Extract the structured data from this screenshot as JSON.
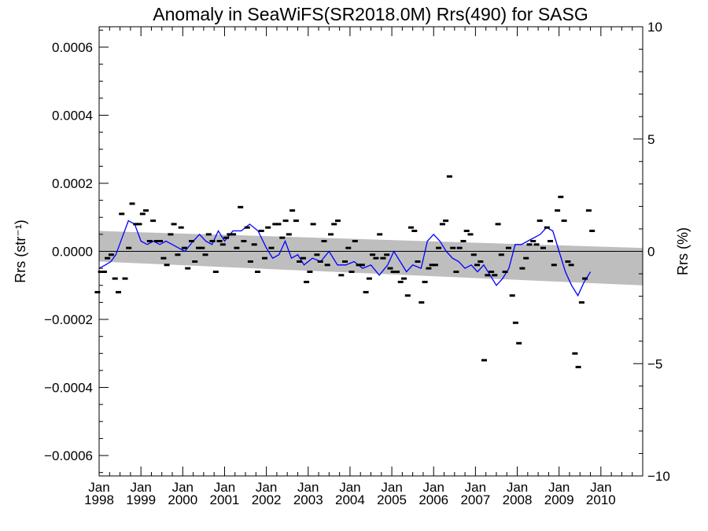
{
  "chart_data": {
    "type": "scatter",
    "title": "Anomaly in SeaWiFS(SR2018.0M) Rrs(490) for SASG",
    "ylabel_left": "Rrs (str⁻¹)",
    "ylabel_right": "Rrs (%)",
    "xlabel": "",
    "xlim": [
      1998.0,
      2011.0
    ],
    "ylim_left": [
      -0.00066,
      0.00066
    ],
    "ylim_right": [
      -10,
      10
    ],
    "grid": false,
    "legend": "none",
    "x_ticks": [
      {
        "value": 1998.0,
        "month": "Jan",
        "year": "1998"
      },
      {
        "value": 1999.0,
        "month": "Jan",
        "year": "1999"
      },
      {
        "value": 2000.0,
        "month": "Jan",
        "year": "2000"
      },
      {
        "value": 2001.0,
        "month": "Jan",
        "year": "2001"
      },
      {
        "value": 2002.0,
        "month": "Jan",
        "year": "2002"
      },
      {
        "value": 2003.0,
        "month": "Jan",
        "year": "2003"
      },
      {
        "value": 2004.0,
        "month": "Jan",
        "year": "2004"
      },
      {
        "value": 2005.0,
        "month": "Jan",
        "year": "2005"
      },
      {
        "value": 2006.0,
        "month": "Jan",
        "year": "2006"
      },
      {
        "value": 2007.0,
        "month": "Jan",
        "year": "2007"
      },
      {
        "value": 2008.0,
        "month": "Jan",
        "year": "2008"
      },
      {
        "value": 2009.0,
        "month": "Jan",
        "year": "2009"
      },
      {
        "value": 2010.0,
        "month": "Jan",
        "year": "2010"
      }
    ],
    "y_ticks_left": [
      {
        "value": 0.0006,
        "label": "0.0006"
      },
      {
        "value": 0.0004,
        "label": "0.0004"
      },
      {
        "value": 0.0002,
        "label": "0.0002"
      },
      {
        "value": 0.0,
        "label": "0.0000"
      },
      {
        "value": -0.0002,
        "label": "−0.0002"
      },
      {
        "value": -0.0004,
        "label": "−0.0004"
      },
      {
        "value": -0.0006,
        "label": "−0.0006"
      }
    ],
    "y_ticks_right": [
      {
        "value": 10,
        "label": "10"
      },
      {
        "value": 5,
        "label": "5"
      },
      {
        "value": 0,
        "label": "0"
      },
      {
        "value": -5,
        "label": "−5"
      },
      {
        "value": -10,
        "label": "−10"
      }
    ],
    "colors": {
      "points": "#000000",
      "running_mean": "#0000ff",
      "confidence_band": "#bebebe",
      "zero_line": "#000000"
    },
    "monthly_anomalies": [
      [
        1997.96,
        -0.00012
      ],
      [
        1998.04,
        -6e-05
      ],
      [
        1998.12,
        -6e-05
      ],
      [
        1998.2,
        -2e-05
      ],
      [
        1998.29,
        -1e-05
      ],
      [
        1998.38,
        -8e-05
      ],
      [
        1998.46,
        -0.00012
      ],
      [
        1998.54,
        0.00011
      ],
      [
        1998.62,
        -8e-05
      ],
      [
        1998.71,
        1e-05
      ],
      [
        1998.79,
        0.00014
      ],
      [
        1998.88,
        8e-05
      ],
      [
        1998.96,
        8e-05
      ],
      [
        1999.04,
        0.00011
      ],
      [
        1999.12,
        0.00012
      ],
      [
        1999.21,
        3e-05
      ],
      [
        1999.29,
        9e-05
      ],
      [
        1999.38,
        3e-05
      ],
      [
        1999.46,
        3e-05
      ],
      [
        1999.54,
        -2e-05
      ],
      [
        1999.62,
        -4e-05
      ],
      [
        1999.71,
        5e-05
      ],
      [
        1999.79,
        8e-05
      ],
      [
        1999.88,
        -1e-05
      ],
      [
        1999.96,
        7e-05
      ],
      [
        2000.04,
        1e-05
      ],
      [
        2000.12,
        -5e-05
      ],
      [
        2000.21,
        3e-05
      ],
      [
        2000.29,
        -3e-05
      ],
      [
        2000.38,
        1e-05
      ],
      [
        2000.46,
        1e-05
      ],
      [
        2000.54,
        -1e-05
      ],
      [
        2000.62,
        5e-05
      ],
      [
        2000.71,
        3e-05
      ],
      [
        2000.79,
        -6e-05
      ],
      [
        2000.88,
        3e-05
      ],
      [
        2000.96,
        2e-05
      ],
      [
        2001.04,
        4e-05
      ],
      [
        2001.12,
        5e-05
      ],
      [
        2001.21,
        5e-05
      ],
      [
        2001.29,
        1e-05
      ],
      [
        2001.38,
        0.00013
      ],
      [
        2001.46,
        3e-05
      ],
      [
        2001.54,
        7e-05
      ],
      [
        2001.62,
        -3e-05
      ],
      [
        2001.71,
        2e-05
      ],
      [
        2001.79,
        -6e-05
      ],
      [
        2001.88,
        6e-05
      ],
      [
        2001.96,
        -2e-05
      ],
      [
        2002.04,
        7e-05
      ],
      [
        2002.12,
        1e-05
      ],
      [
        2002.21,
        8e-05
      ],
      [
        2002.29,
        8e-05
      ],
      [
        2002.38,
        4e-05
      ],
      [
        2002.46,
        9e-05
      ],
      [
        2002.54,
        5e-05
      ],
      [
        2002.62,
        0.00012
      ],
      [
        2002.71,
        9e-05
      ],
      [
        2002.79,
        -3e-05
      ],
      [
        2002.88,
        -2e-05
      ],
      [
        2002.96,
        -9e-05
      ],
      [
        2003.04,
        -6e-05
      ],
      [
        2003.12,
        8e-05
      ],
      [
        2003.21,
        -1e-05
      ],
      [
        2003.29,
        -3e-05
      ],
      [
        2003.38,
        3e-05
      ],
      [
        2003.46,
        -4e-05
      ],
      [
        2003.54,
        5e-05
      ],
      [
        2003.62,
        8e-05
      ],
      [
        2003.71,
        9e-05
      ],
      [
        2003.79,
        -7e-05
      ],
      [
        2003.88,
        -3e-05
      ],
      [
        2003.96,
        1e-05
      ],
      [
        2004.04,
        -6e-05
      ],
      [
        2004.12,
        3e-05
      ],
      [
        2004.21,
        -4e-05
      ],
      [
        2004.29,
        -4e-05
      ],
      [
        2004.38,
        -0.00012
      ],
      [
        2004.46,
        -8e-05
      ],
      [
        2004.54,
        -1e-05
      ],
      [
        2004.62,
        -2e-05
      ],
      [
        2004.71,
        5e-05
      ],
      [
        2004.79,
        -2e-05
      ],
      [
        2004.88,
        -1e-05
      ],
      [
        2004.96,
        -5e-05
      ],
      [
        2005.04,
        -6e-05
      ],
      [
        2005.12,
        -6e-05
      ],
      [
        2005.21,
        -9e-05
      ],
      [
        2005.29,
        -8e-05
      ],
      [
        2005.38,
        -0.00013
      ],
      [
        2005.46,
        7e-05
      ],
      [
        2005.54,
        6e-05
      ],
      [
        2005.62,
        -3e-05
      ],
      [
        2005.71,
        -0.00015
      ],
      [
        2005.79,
        -9e-05
      ],
      [
        2005.88,
        -5e-05
      ],
      [
        2005.96,
        -4e-05
      ],
      [
        2006.04,
        -4e-05
      ],
      [
        2006.12,
        1e-05
      ],
      [
        2006.21,
        8e-05
      ],
      [
        2006.29,
        9e-05
      ],
      [
        2006.38,
        0.00022
      ],
      [
        2006.46,
        1e-05
      ],
      [
        2006.54,
        -6e-05
      ],
      [
        2006.62,
        1e-05
      ],
      [
        2006.71,
        3e-05
      ],
      [
        2006.79,
        6e-05
      ],
      [
        2006.88,
        5e-05
      ],
      [
        2006.96,
        -1e-05
      ],
      [
        2007.04,
        -4e-05
      ],
      [
        2007.12,
        -3e-05
      ],
      [
        2007.21,
        -0.00032
      ],
      [
        2007.29,
        -7e-05
      ],
      [
        2007.38,
        -6e-05
      ],
      [
        2007.46,
        -7e-05
      ],
      [
        2007.54,
        8e-05
      ],
      [
        2007.62,
        -1e-05
      ],
      [
        2007.71,
        -6e-05
      ],
      [
        2007.79,
        1e-05
      ],
      [
        2007.88,
        -0.00013
      ],
      [
        2007.96,
        -0.00021
      ],
      [
        2008.04,
        -0.00027
      ],
      [
        2008.12,
        -5e-05
      ],
      [
        2008.21,
        -2e-05
      ],
      [
        2008.29,
        2e-05
      ],
      [
        2008.38,
        3e-05
      ],
      [
        2008.46,
        2e-05
      ],
      [
        2008.54,
        9e-05
      ],
      [
        2008.62,
        1e-05
      ],
      [
        2008.71,
        7e-05
      ],
      [
        2008.79,
        3e-05
      ],
      [
        2008.88,
        -4e-05
      ],
      [
        2008.96,
        0.00012
      ],
      [
        2009.04,
        0.00016
      ],
      [
        2009.12,
        9e-05
      ],
      [
        2009.21,
        -3e-05
      ],
      [
        2009.29,
        -4e-05
      ],
      [
        2009.38,
        -0.0003
      ],
      [
        2009.46,
        -0.00034
      ],
      [
        2009.54,
        -0.00015
      ],
      [
        2009.62,
        -8e-05
      ],
      [
        2009.71,
        0.00012
      ],
      [
        2009.79,
        6e-05
      ]
    ],
    "running_mean": [
      [
        1998.0,
        -5e-05
      ],
      [
        1998.15,
        -4e-05
      ],
      [
        1998.28,
        -3e-05
      ],
      [
        1998.4,
        -1e-05
      ],
      [
        1998.55,
        4e-05
      ],
      [
        1998.7,
        9e-05
      ],
      [
        1998.85,
        8e-05
      ],
      [
        1999.0,
        3e-05
      ],
      [
        1999.15,
        2e-05
      ],
      [
        1999.3,
        3e-05
      ],
      [
        1999.45,
        2e-05
      ],
      [
        1999.6,
        3e-05
      ],
      [
        1999.75,
        2e-05
      ],
      [
        1999.9,
        1e-05
      ],
      [
        2000.05,
        0.0
      ],
      [
        2000.25,
        3e-05
      ],
      [
        2000.4,
        5e-05
      ],
      [
        2000.55,
        3e-05
      ],
      [
        2000.7,
        2e-05
      ],
      [
        2000.85,
        6e-05
      ],
      [
        2001.0,
        3e-05
      ],
      [
        2001.2,
        6e-05
      ],
      [
        2001.4,
        6e-05
      ],
      [
        2001.6,
        8e-05
      ],
      [
        2001.8,
        6e-05
      ],
      [
        2002.0,
        1e-05
      ],
      [
        2002.15,
        -2e-05
      ],
      [
        2002.3,
        -1e-05
      ],
      [
        2002.45,
        3e-05
      ],
      [
        2002.6,
        -2e-05
      ],
      [
        2002.75,
        -1e-05
      ],
      [
        2002.9,
        -4e-05
      ],
      [
        2003.1,
        -2e-05
      ],
      [
        2003.3,
        -3e-05
      ],
      [
        2003.5,
        0.0
      ],
      [
        2003.7,
        -4e-05
      ],
      [
        2003.9,
        -4e-05
      ],
      [
        2004.1,
        -3e-05
      ],
      [
        2004.3,
        -5e-05
      ],
      [
        2004.5,
        -4e-05
      ],
      [
        2004.7,
        -7e-05
      ],
      [
        2004.9,
        -4e-05
      ],
      [
        2005.05,
        0.0
      ],
      [
        2005.2,
        -3e-05
      ],
      [
        2005.35,
        -6e-05
      ],
      [
        2005.5,
        -4e-05
      ],
      [
        2005.7,
        -5e-05
      ],
      [
        2005.85,
        3e-05
      ],
      [
        2006.0,
        5e-05
      ],
      [
        2006.15,
        3e-05
      ],
      [
        2006.3,
        0.0
      ],
      [
        2006.45,
        -2e-05
      ],
      [
        2006.6,
        -3e-05
      ],
      [
        2006.75,
        -5e-05
      ],
      [
        2006.9,
        -4e-05
      ],
      [
        2007.05,
        -6e-05
      ],
      [
        2007.2,
        -4e-05
      ],
      [
        2007.35,
        -7e-05
      ],
      [
        2007.5,
        -0.0001
      ],
      [
        2007.65,
        -8e-05
      ],
      [
        2007.8,
        -5e-05
      ],
      [
        2007.95,
        2e-05
      ],
      [
        2008.1,
        2e-05
      ],
      [
        2008.25,
        3e-05
      ],
      [
        2008.4,
        4e-05
      ],
      [
        2008.55,
        5e-05
      ],
      [
        2008.7,
        7e-05
      ],
      [
        2008.85,
        6e-05
      ],
      [
        2009.0,
        0.0
      ],
      [
        2009.15,
        -6e-05
      ],
      [
        2009.3,
        -0.0001
      ],
      [
        2009.45,
        -0.00013
      ],
      [
        2009.6,
        -9e-05
      ],
      [
        2009.75,
        -6e-05
      ]
    ],
    "trend_band": {
      "x": [
        1998.0,
        2011.0
      ],
      "upper": [
        6e-05,
        1e-05
      ],
      "lower": [
        -3e-05,
        -0.0001
      ]
    }
  }
}
